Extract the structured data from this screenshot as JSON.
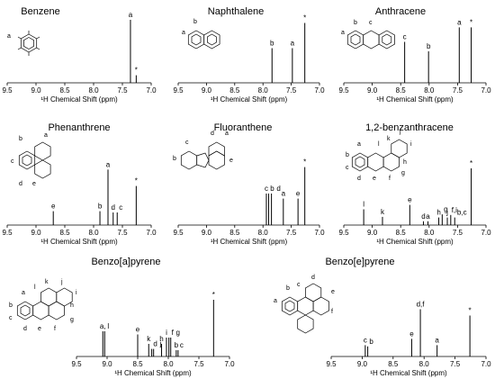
{
  "chart_data": [
    {
      "type": "nmr-spectrum",
      "title": "Benzene",
      "xlabel": "¹H Chemical Shift (ppm)",
      "xlim": [
        9.5,
        7.0
      ],
      "ticks": [
        "9.5",
        "9.0",
        "8.5",
        "8.0",
        "7.5",
        "7.0"
      ],
      "peaks": [
        {
          "label": "a",
          "ppm": 7.36,
          "height": 1.0
        },
        {
          "label": "*",
          "ppm": 7.26,
          "height": 0.12
        }
      ],
      "structure_labels": [
        "a"
      ]
    },
    {
      "type": "nmr-spectrum",
      "title": "Naphthalene",
      "xlabel": "¹H Chemical Shift (ppm)",
      "xlim": [
        9.5,
        7.0
      ],
      "ticks": [
        "9.5",
        "9.0",
        "8.5",
        "8.0",
        "7.5",
        "7.0"
      ],
      "peaks": [
        {
          "label": "b",
          "ppm": 7.84,
          "height": 0.55
        },
        {
          "label": "a",
          "ppm": 7.48,
          "height": 0.55
        },
        {
          "label": "*",
          "ppm": 7.26,
          "height": 0.95
        }
      ],
      "structure_labels": [
        "b",
        "a"
      ]
    },
    {
      "type": "nmr-spectrum",
      "title": "Anthracene",
      "xlabel": "¹H Chemical Shift (ppm)",
      "xlim": [
        9.5,
        7.0
      ],
      "ticks": [
        "9.5",
        "9.0",
        "8.5",
        "8.0",
        "7.5",
        "7.0"
      ],
      "peaks": [
        {
          "label": "c",
          "ppm": 8.43,
          "height": 0.65
        },
        {
          "label": "b",
          "ppm": 8.01,
          "height": 0.5
        },
        {
          "label": "a",
          "ppm": 7.47,
          "height": 0.88
        },
        {
          "label": "*",
          "ppm": 7.26,
          "height": 0.88
        }
      ],
      "structure_labels": [
        "b",
        "c",
        "a"
      ]
    },
    {
      "type": "nmr-spectrum",
      "title": "Phenanthrene",
      "xlabel": "¹H Chemical Shift (ppm)",
      "xlim": [
        9.5,
        7.0
      ],
      "ticks": [
        "9.5",
        "9.0",
        "8.5",
        "8.0",
        "7.5",
        "7.0"
      ],
      "peaks": [
        {
          "label": "e",
          "ppm": 8.7,
          "height": 0.22
        },
        {
          "label": "b",
          "ppm": 7.89,
          "height": 0.22
        },
        {
          "label": "a",
          "ppm": 7.75,
          "height": 0.88
        },
        {
          "label": "d",
          "ppm": 7.66,
          "height": 0.2
        },
        {
          "label": "c",
          "ppm": 7.59,
          "height": 0.2
        },
        {
          "label": "*",
          "ppm": 7.26,
          "height": 0.62
        }
      ],
      "structure_labels": [
        "b",
        "a",
        "c",
        "d",
        "e"
      ]
    },
    {
      "type": "nmr-spectrum",
      "title": "Fluoranthene",
      "xlabel": "¹H Chemical Shift (ppm)",
      "xlim": [
        9.5,
        7.0
      ],
      "ticks": [
        "9.5",
        "9.0",
        "8.5",
        "8.0",
        "7.5",
        "7.0"
      ],
      "peaks": [
        {
          "label": "c",
          "ppm": 7.94,
          "height": 0.5
        },
        {
          "label": "b",
          "ppm": 7.9,
          "height": 0.5
        },
        {
          "label": "d",
          "ppm": 7.85,
          "height": 0.5
        },
        {
          "label": "a",
          "ppm": 7.64,
          "height": 0.42
        },
        {
          "label": "e",
          "ppm": 7.38,
          "height": 0.42
        },
        {
          "label": "*",
          "ppm": 7.26,
          "height": 0.92
        }
      ],
      "structure_labels": [
        "b",
        "c",
        "d",
        "a",
        "e"
      ]
    },
    {
      "type": "nmr-spectrum",
      "title": "1,2-benzanthracene",
      "xlabel": "¹H Chemical Shift (ppm)",
      "xlim": [
        9.5,
        7.0
      ],
      "ticks": [
        "9.5",
        "9.0",
        "8.5",
        "8.0",
        "7.5",
        "7.0"
      ],
      "peaks": [
        {
          "label": "l",
          "ppm": 9.15,
          "height": 0.25
        },
        {
          "label": "k",
          "ppm": 8.82,
          "height": 0.13
        },
        {
          "label": "e",
          "ppm": 8.34,
          "height": 0.32
        },
        {
          "label": "d",
          "ppm": 8.1,
          "height": 0.06
        },
        {
          "label": "a",
          "ppm": 8.02,
          "height": 0.06
        },
        {
          "label": "h",
          "ppm": 7.83,
          "height": 0.12
        },
        {
          "label": "g",
          "ppm": 7.77,
          "height": 0.17
        },
        {
          "label": "j",
          "ppm": 7.68,
          "height": 0.12
        },
        {
          "label": "f,i",
          "ppm": 7.62,
          "height": 0.16
        },
        {
          "label": "b,c",
          "ppm": 7.55,
          "height": 0.12
        },
        {
          "label": "*",
          "ppm": 7.26,
          "height": 0.9
        }
      ],
      "structure_labels": [
        "j",
        "a",
        "l",
        "k",
        "i",
        "b",
        "h",
        "c",
        "d",
        "e",
        "f",
        "g"
      ]
    },
    {
      "type": "nmr-spectrum",
      "title": "Benzo[a]pyrene",
      "xlabel": "¹H Chemical Shift (ppm)",
      "xlim": [
        9.5,
        7.0
      ],
      "ticks": [
        "9.5",
        "9.0",
        "8.5",
        "8.0",
        "7.5",
        "7.0"
      ],
      "peaks": [
        {
          "label": "a,",
          "ppm": 9.07,
          "height": 0.4
        },
        {
          "label": "l",
          "ppm": 9.04,
          "height": 0.4
        },
        {
          "label": "e",
          "ppm": 8.5,
          "height": 0.35
        },
        {
          "label": "k",
          "ppm": 8.32,
          "height": 0.2
        },
        {
          "label": "d",
          "ppm": 8.27,
          "height": 0.12
        },
        {
          "label": "j",
          "ppm": 8.24,
          "height": 0.12
        },
        {
          "label": "h",
          "ppm": 8.11,
          "height": 0.2
        },
        {
          "label": "i",
          "ppm": 8.03,
          "height": 0.3
        },
        {
          "label": "f",
          "ppm": 7.99,
          "height": 0.3
        },
        {
          "label": "g",
          "ppm": 7.96,
          "height": 0.3
        },
        {
          "label": "b",
          "ppm": 7.87,
          "height": 0.1
        },
        {
          "label": "c",
          "ppm": 7.84,
          "height": 0.1
        },
        {
          "label": "*",
          "ppm": 7.26,
          "height": 0.9
        }
      ],
      "structure_labels": [
        "k",
        "a",
        "l",
        "j",
        "i",
        "b",
        "h",
        "c",
        "g",
        "d",
        "e",
        "f"
      ]
    },
    {
      "type": "nmr-spectrum",
      "title": "Benzo[e]pyrene",
      "xlabel": "¹H Chemical Shift (ppm)",
      "xlim": [
        9.5,
        7.0
      ],
      "ticks": [
        "9.5",
        "9.0",
        "8.5",
        "8.0",
        "7.5",
        "7.0"
      ],
      "peaks": [
        {
          "label": "c",
          "ppm": 8.95,
          "height": 0.18
        },
        {
          "label": "b",
          "ppm": 8.91,
          "height": 0.16
        },
        {
          "label": "e",
          "ppm": 8.2,
          "height": 0.28
        },
        {
          "label": "d,f",
          "ppm": 8.06,
          "height": 0.75
        },
        {
          "label": "a",
          "ppm": 7.79,
          "height": 0.18
        },
        {
          "label": "*",
          "ppm": 7.26,
          "height": 0.65
        }
      ],
      "structure_labels": [
        "d",
        "b",
        "c",
        "e",
        "a",
        "f"
      ]
    }
  ]
}
